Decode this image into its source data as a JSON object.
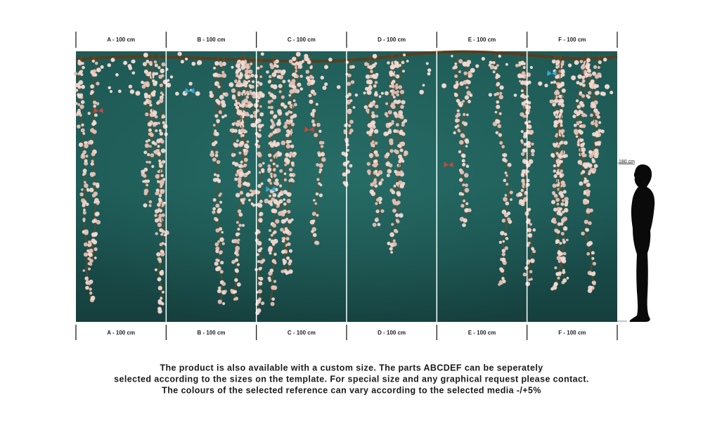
{
  "top_labels": [
    "A - 100 cm",
    "B - 100 cm",
    "C - 100 cm",
    "D - 100 cm",
    "E - 100 cm",
    "F - 100 cm"
  ],
  "bottom_labels": [
    "A - 100 cm",
    "B - 100 cm",
    "C - 100 cm",
    "D - 100 cm",
    "E - 100 cm",
    "F - 100 cm"
  ],
  "height_label": "180 cm",
  "description": [
    "The product is also available with a custom size. The parts ABCDEF can be seperately",
    "selected according to the sizes on the template. For special size and any graphical request please contact.",
    "The colours of the selected reference can vary according to the selected media -/+5%"
  ]
}
